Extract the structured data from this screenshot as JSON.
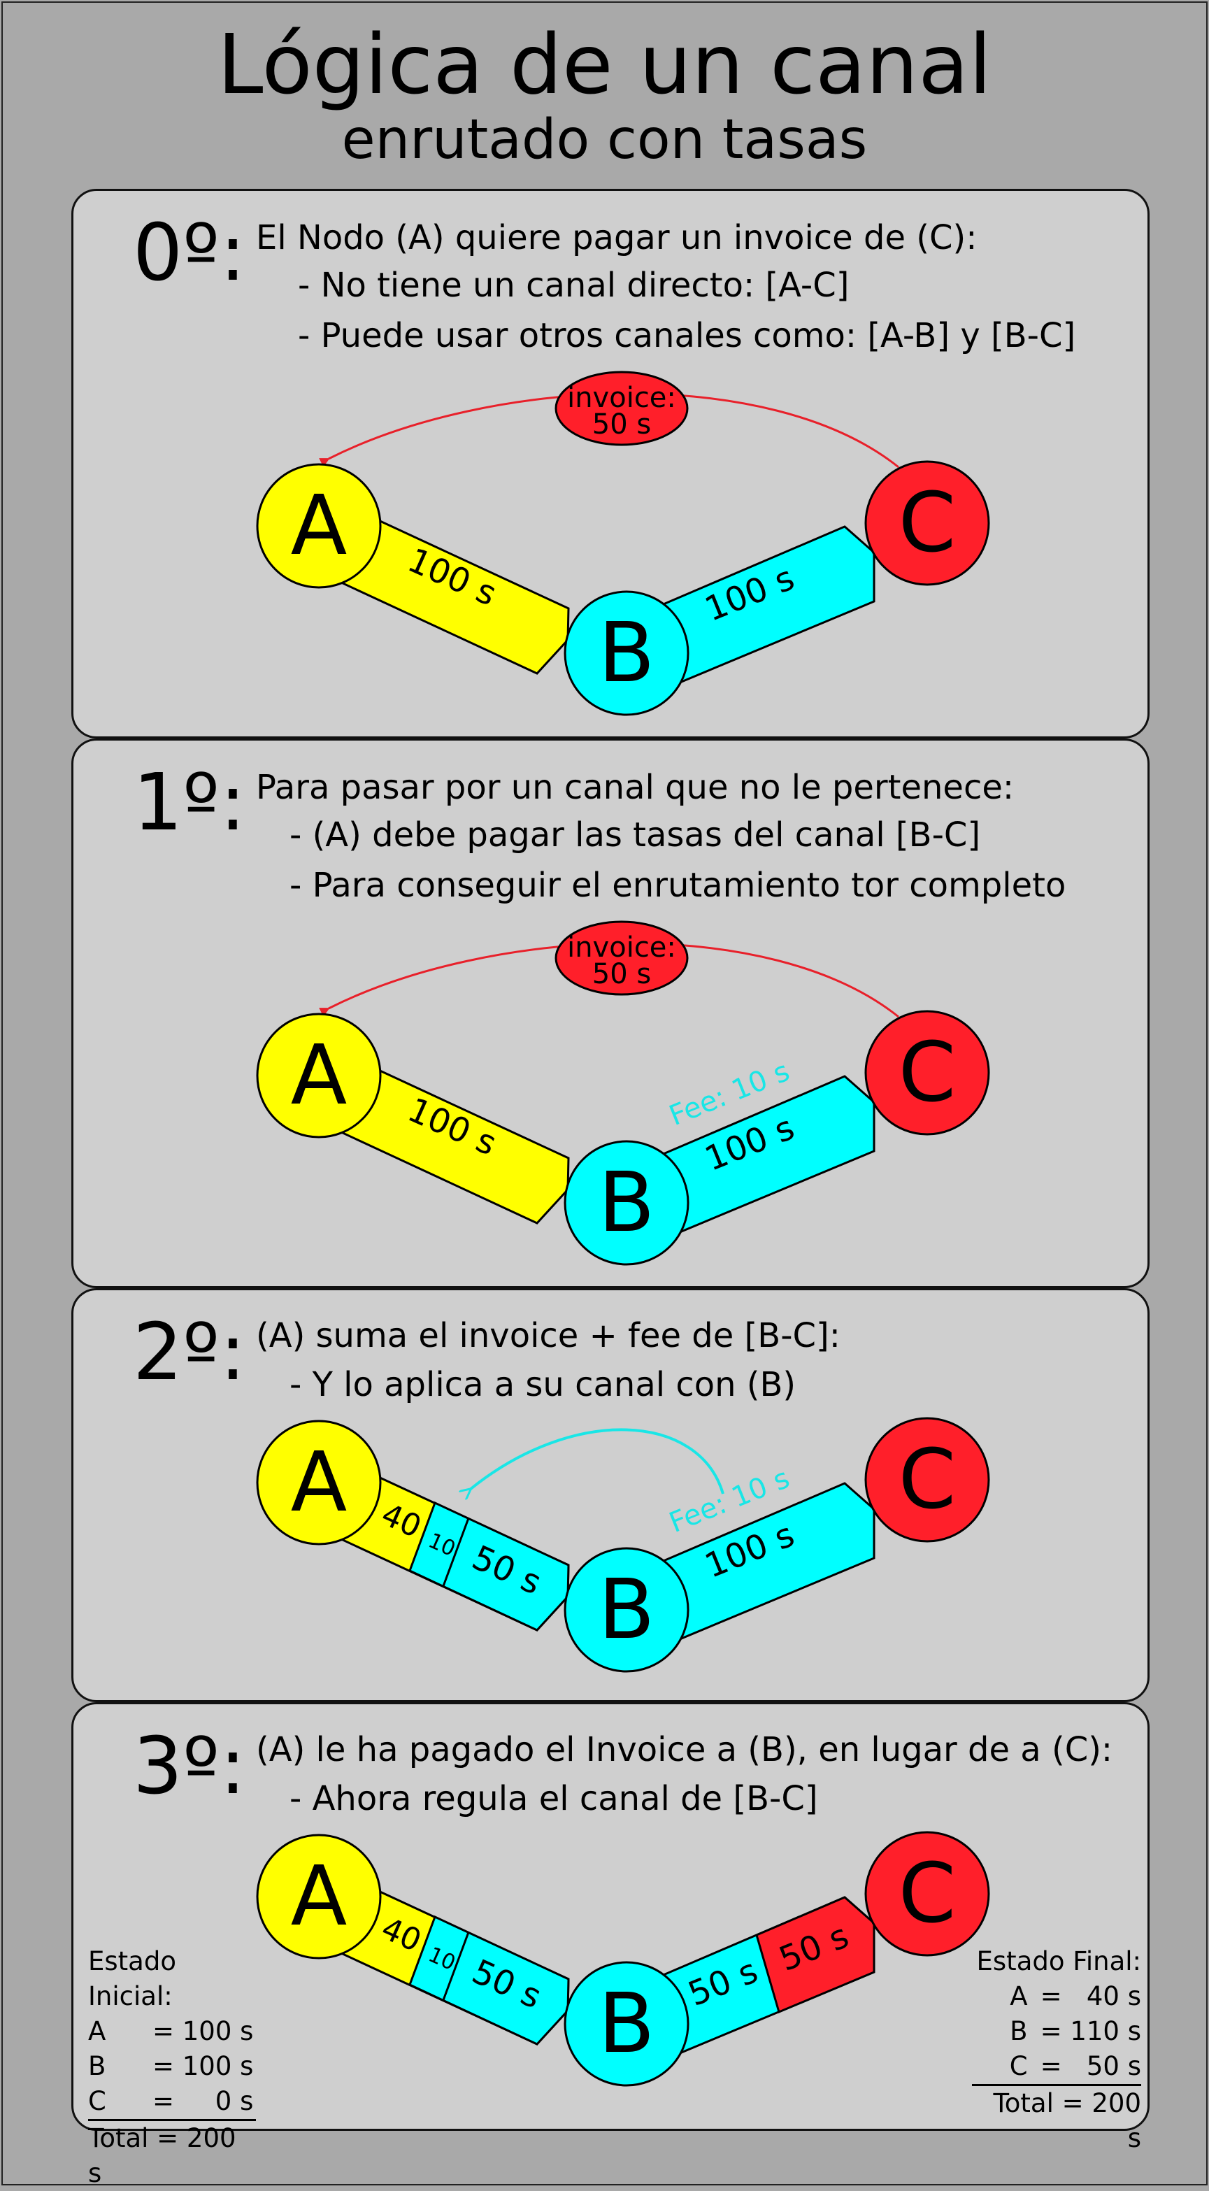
{
  "title": "Lógica de un canal",
  "subtitle": "enrutado con tasas",
  "steps": [
    {
      "number": "0º:",
      "heading": "El Nodo (A) quiere pagar un invoice de (C):",
      "bullets": [
        "- No tiene un canal directo: [A-C]",
        "- Puede usar otros canales como: [A-B] y [B-C]"
      ]
    },
    {
      "number": "1º:",
      "heading": "Para pasar por un canal que no le pertenece:",
      "bullets": [
        "- (A) debe pagar las tasas del canal [B-C]",
        "- Para conseguir el enrutamiento tor completo"
      ]
    },
    {
      "number": "2º:",
      "heading": "(A) suma el invoice + fee de [B-C]:",
      "bullets": [
        "- Y lo aplica a su canal con (B)"
      ]
    },
    {
      "number": "3º:",
      "heading": "(A) le ha pagado el Invoice a (B), en lugar de a (C):",
      "bullets": [
        "- Ahora regula el canal de [B-C]"
      ]
    }
  ],
  "nodes": {
    "a": "A",
    "b": "B",
    "c": "C"
  },
  "invoice": {
    "line1": "invoice:",
    "line2": "50 s"
  },
  "channels": {
    "ab_full": "100 s",
    "bc_full": "100 s",
    "fee": "Fee: 10 s",
    "ab_seg_a": "40",
    "ab_seg_fee": "10",
    "ab_seg_b": "50 s",
    "bc_seg_b": "50 s",
    "bc_seg_c": "50 s"
  },
  "estado_inicial": {
    "title": "Estado Inicial:",
    "rows": [
      {
        "k": "A",
        "v": "= 100 s"
      },
      {
        "k": "B",
        "v": "= 100 s"
      },
      {
        "k": "C",
        "v": "=     0 s"
      }
    ],
    "total": "Total = 200 s"
  },
  "estado_final": {
    "title": "Estado Final:",
    "rows": [
      {
        "k": "A",
        "v": "=   40 s"
      },
      {
        "k": "B",
        "v": "= 110 s"
      },
      {
        "k": "C",
        "v": "=   50 s"
      }
    ],
    "total": "Total = 200 s"
  },
  "colors": {
    "node_a": "#ffff00",
    "node_b": "#00ffff",
    "node_c": "#ff1f2a",
    "invoice_arrow": "#e8202a",
    "fee_arrow": "#19e6e6",
    "panel": "#cfcfcf",
    "background": "#a9a9a9"
  }
}
